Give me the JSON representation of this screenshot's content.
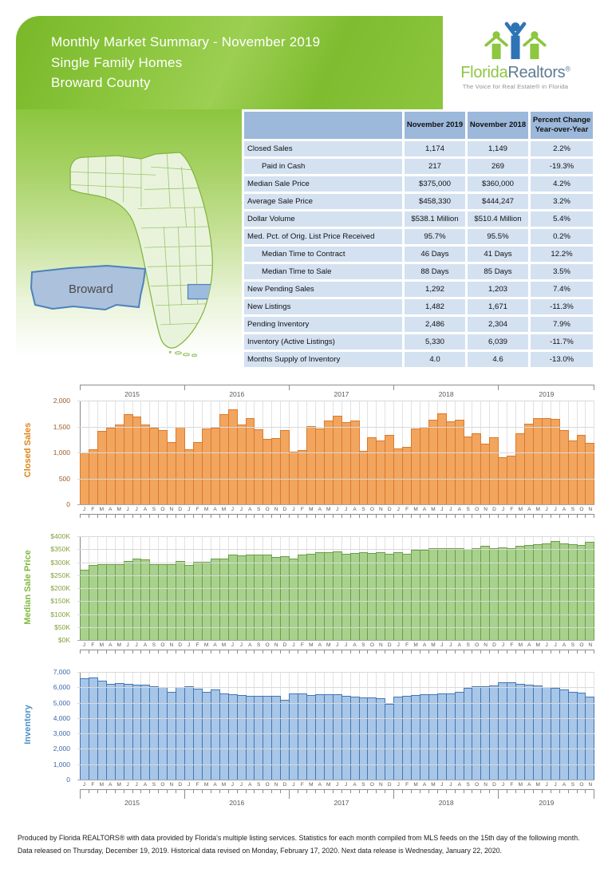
{
  "header": {
    "title_line1": "Monthly Market Summary - November 2019",
    "title_line2": "Single Family Homes",
    "title_line3": "Broward County"
  },
  "logo": {
    "brand_green": "Florida",
    "brand_blue": "Realtors",
    "registered": "®",
    "tagline": "The Voice for Real Estate® in Florida"
  },
  "map": {
    "callout_label": "Broward",
    "highlight_color": "#9dbbdc"
  },
  "summary_table": {
    "columns": [
      "November 2019",
      "November 2018",
      "Percent Change\nYear-over-Year"
    ],
    "rows": [
      {
        "label": "Closed Sales",
        "indent": false,
        "values": [
          "1,174",
          "1,149",
          "2.2%"
        ]
      },
      {
        "label": "Paid in Cash",
        "indent": true,
        "values": [
          "217",
          "269",
          "-19.3%"
        ]
      },
      {
        "label": "Median Sale Price",
        "indent": false,
        "values": [
          "$375,000",
          "$360,000",
          "4.2%"
        ]
      },
      {
        "label": "Average Sale Price",
        "indent": false,
        "values": [
          "$458,330",
          "$444,247",
          "3.2%"
        ]
      },
      {
        "label": "Dollar Volume",
        "indent": false,
        "values": [
          "$538.1 Million",
          "$510.4 Million",
          "5.4%"
        ]
      },
      {
        "label": "Med. Pct. of Orig. List Price Received",
        "indent": false,
        "values": [
          "95.7%",
          "95.5%",
          "0.2%"
        ]
      },
      {
        "label": "Median Time to Contract",
        "indent": true,
        "values": [
          "46 Days",
          "41 Days",
          "12.2%"
        ]
      },
      {
        "label": "Median Time to Sale",
        "indent": true,
        "values": [
          "88 Days",
          "85 Days",
          "3.5%"
        ]
      },
      {
        "label": "New Pending Sales",
        "indent": false,
        "values": [
          "1,292",
          "1,203",
          "7.4%"
        ]
      },
      {
        "label": "New Listings",
        "indent": false,
        "values": [
          "1,482",
          "1,671",
          "-11.3%"
        ]
      },
      {
        "label": "Pending Inventory",
        "indent": false,
        "values": [
          "2,486",
          "2,304",
          "7.9%"
        ]
      },
      {
        "label": "Inventory (Active Listings)",
        "indent": false,
        "values": [
          "5,330",
          "6,039",
          "-11.7%"
        ]
      },
      {
        "label": "Months Supply of Inventory",
        "indent": false,
        "values": [
          "4.0",
          "4.6",
          "-13.0%"
        ]
      }
    ]
  },
  "months_cycle": "JFMAMJJASOND",
  "chart_data": [
    {
      "type": "bar",
      "title": "Closed Sales",
      "ylabel": "Closed Sales",
      "ylim": [
        0,
        2000
      ],
      "ytick_labels": [
        "2,000",
        "1,500",
        "1,000",
        "500",
        "0"
      ],
      "year_axis": "top",
      "years": [
        {
          "label": "2015",
          "months": 12
        },
        {
          "label": "2016",
          "months": 12
        },
        {
          "label": "2017",
          "months": 12
        },
        {
          "label": "2018",
          "months": 12
        },
        {
          "label": "2019",
          "months": 11
        }
      ],
      "values": [
        990,
        1050,
        1400,
        1460,
        1530,
        1720,
        1670,
        1530,
        1460,
        1420,
        1190,
        1480,
        1050,
        1190,
        1440,
        1460,
        1730,
        1810,
        1520,
        1650,
        1430,
        1250,
        1260,
        1410,
        1000,
        1030,
        1500,
        1450,
        1600,
        1700,
        1570,
        1600,
        1010,
        1270,
        1220,
        1320,
        1060,
        1100,
        1440,
        1480,
        1610,
        1740,
        1580,
        1620,
        1300,
        1350,
        1149,
        1270,
        900,
        925,
        1360,
        1540,
        1640,
        1650,
        1630,
        1410,
        1210,
        1330,
        1174
      ],
      "bar_fill": "#f2a55e",
      "bar_border": "#d9792b",
      "axis_label_color": "#9c5a24",
      "title_color": "#dd8418"
    },
    {
      "type": "bar",
      "title": "Median Sale Price",
      "ylabel": "Median Sale Price",
      "unit": "thousand dollars",
      "ylim": [
        0,
        400
      ],
      "ytick_labels": [
        "$400K",
        "$350K",
        "$300K",
        "$250K",
        "$200K",
        "$150K",
        "$100K",
        "$50K",
        "$0K"
      ],
      "year_axis": "none",
      "years": [
        {
          "label": "2015",
          "months": 12
        },
        {
          "label": "2016",
          "months": 12
        },
        {
          "label": "2017",
          "months": 12
        },
        {
          "label": "2018",
          "months": 12
        },
        {
          "label": "2019",
          "months": 11
        }
      ],
      "values": [
        267,
        287,
        290,
        290,
        290,
        302,
        312,
        309,
        290,
        290,
        290,
        302,
        285,
        300,
        300,
        312,
        312,
        327,
        322,
        327,
        327,
        327,
        318,
        320,
        312,
        325,
        330,
        335,
        335,
        340,
        330,
        333,
        335,
        333,
        335,
        330,
        335,
        330,
        345,
        345,
        350,
        352,
        350,
        350,
        348,
        352,
        360,
        350,
        355,
        352,
        360,
        362,
        365,
        370,
        378,
        368,
        365,
        363,
        375
      ],
      "bar_fill": "#a9d18e",
      "bar_border": "#699e45",
      "axis_label_color": "#83a03d",
      "title_color": "#7fb93e"
    },
    {
      "type": "bar",
      "title": "Inventory",
      "ylabel": "Inventory",
      "ylim": [
        0,
        7000
      ],
      "ytick_labels": [
        "7,000",
        "6,000",
        "5,000",
        "4,000",
        "3,000",
        "2,000",
        "1,000",
        "0"
      ],
      "year_axis": "bottom",
      "years": [
        {
          "label": "2015",
          "months": 12
        },
        {
          "label": "2016",
          "months": 12
        },
        {
          "label": "2017",
          "months": 12
        },
        {
          "label": "2018",
          "months": 12
        },
        {
          "label": "2019",
          "months": 11
        }
      ],
      "values": [
        6550,
        6600,
        6380,
        6150,
        6200,
        6150,
        6100,
        6100,
        6020,
        5950,
        5650,
        5950,
        6000,
        5850,
        5650,
        5800,
        5550,
        5500,
        5450,
        5400,
        5380,
        5380,
        5380,
        5150,
        5550,
        5550,
        5450,
        5500,
        5520,
        5480,
        5400,
        5350,
        5300,
        5300,
        5250,
        4900,
        5350,
        5400,
        5450,
        5500,
        5520,
        5530,
        5560,
        5650,
        5900,
        6000,
        6039,
        6050,
        6300,
        6250,
        6150,
        6100,
        6050,
        5950,
        5900,
        5800,
        5650,
        5600,
        5330
      ],
      "bar_fill": "#a8c6e8",
      "bar_border": "#4176b4",
      "axis_label_color": "#3c66a8",
      "title_color": "#4a90c8"
    }
  ],
  "footer": {
    "line1": "Produced by Florida REALTORS® with data provided by Florida's multiple listing services. Statistics for each month compiled from MLS feeds on the 15th day of the following month.",
    "line2": "Data released on Thursday, December 19, 2019. Historical data revised on Monday, February 17, 2020. Next data release is Wednesday, January 22, 2020."
  }
}
